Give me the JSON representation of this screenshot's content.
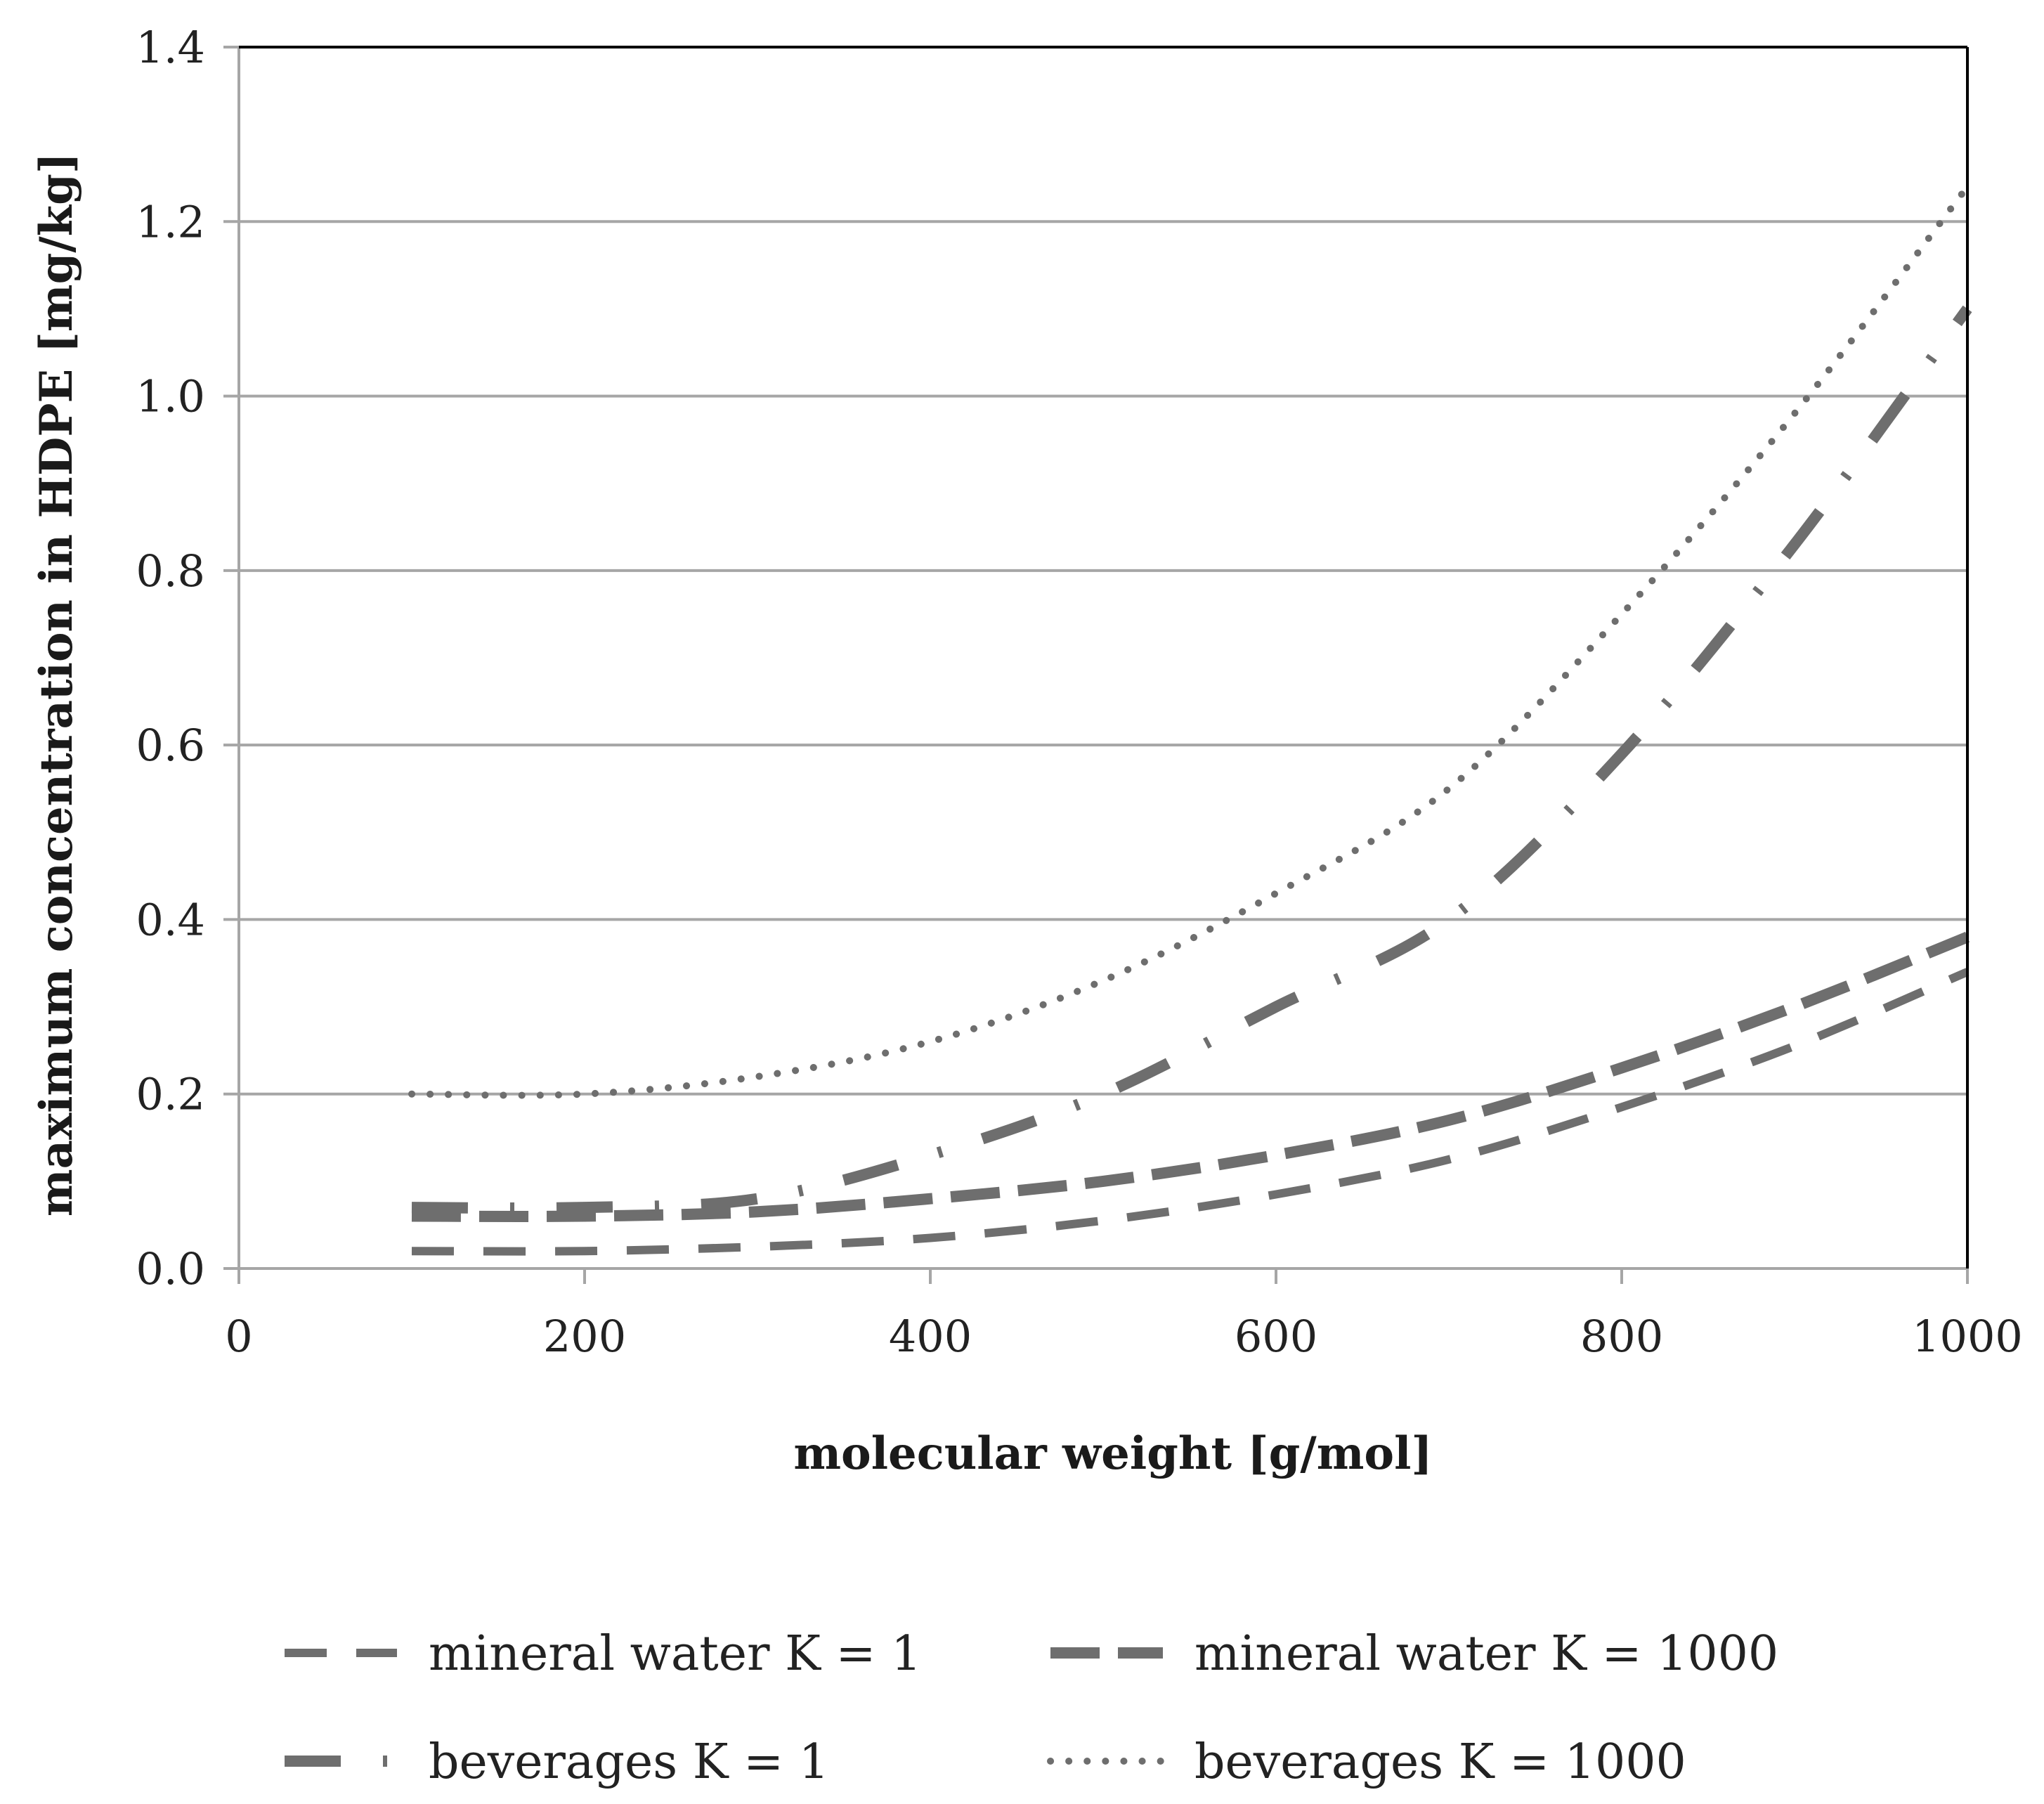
{
  "chart_data": {
    "type": "line",
    "title": "",
    "xlabel": "molecular weight [g/mol]",
    "ylabel": "maximum concentration in HDPE [mg/kg]",
    "xlim": [
      0,
      1000
    ],
    "ylim": [
      0,
      1.4
    ],
    "xticks": [
      0,
      200,
      400,
      600,
      800,
      1000
    ],
    "xtick_labels": [
      "0",
      "200",
      "400",
      "600",
      "800",
      "1000"
    ],
    "yticks": [
      0,
      0.2,
      0.4,
      0.6,
      0.8,
      1.0,
      1.2,
      1.4
    ],
    "ytick_labels": [
      "0.0",
      "0.2",
      "0.4",
      "0.6",
      "0.8",
      "1.0",
      "1.2",
      "1.4"
    ],
    "grid": "horizontal",
    "legend_position": "bottom",
    "series": [
      {
        "name": "mineral water K = 1",
        "style": "dashed",
        "color": "#6e6e6e",
        "x": [
          100,
          200,
          300,
          400,
          500,
          600,
          700,
          800,
          900,
          1000
        ],
        "y": [
          0.02,
          0.02,
          0.025,
          0.035,
          0.055,
          0.085,
          0.125,
          0.185,
          0.255,
          0.34
        ]
      },
      {
        "name": "mineral water K = 1000",
        "style": "long-dashed-thick",
        "color": "#6e6e6e",
        "x": [
          100,
          200,
          300,
          400,
          500,
          600,
          700,
          800,
          900,
          1000
        ],
        "y": [
          0.06,
          0.06,
          0.065,
          0.08,
          0.1,
          0.13,
          0.17,
          0.23,
          0.3,
          0.38
        ]
      },
      {
        "name": "beverages K = 1",
        "style": "dash-dot",
        "color": "#6e6e6e",
        "x": [
          100,
          200,
          300,
          400,
          500,
          600,
          700,
          800,
          900,
          1000
        ],
        "y": [
          0.07,
          0.07,
          0.08,
          0.13,
          0.2,
          0.3,
          0.4,
          0.59,
          0.83,
          1.1
        ]
      },
      {
        "name": "beverages K = 1000",
        "style": "dotted",
        "color": "#6e6e6e",
        "x": [
          100,
          200,
          300,
          400,
          500,
          600,
          700,
          800,
          900,
          1000
        ],
        "y": [
          0.2,
          0.2,
          0.22,
          0.26,
          0.33,
          0.43,
          0.55,
          0.75,
          0.98,
          1.24
        ]
      }
    ]
  }
}
